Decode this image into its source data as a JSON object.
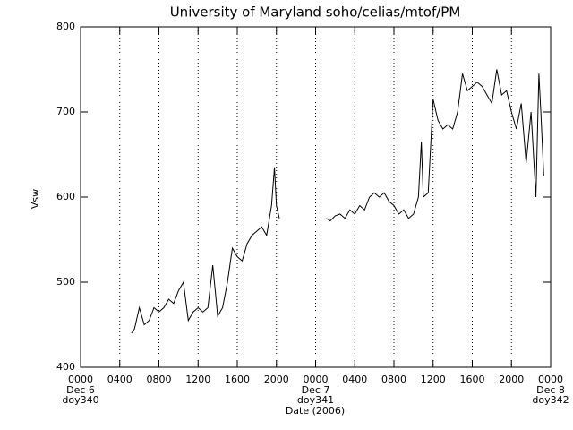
{
  "chart_data": {
    "type": "line",
    "title": "University of Maryland  soho/celias/mtof/PM",
    "ylabel": "Vsw",
    "xlabel": "Date (2006)",
    "color": "#000000",
    "x": [
      5.2,
      5.5,
      6.0,
      6.5,
      7.0,
      7.5,
      8.0,
      8.5,
      9.0,
      9.5,
      10.0,
      10.5,
      11.0,
      11.5,
      12.0,
      12.5,
      13.0,
      13.5,
      14.0,
      14.5,
      15.0,
      15.5,
      16.0,
      16.5,
      17.0,
      17.5,
      18.0,
      18.5,
      19.0,
      19.5,
      19.8,
      20.0,
      20.3,
      22.5,
      25.1,
      25.5,
      26.0,
      26.5,
      27.0,
      27.5,
      28.0,
      28.5,
      29.0,
      29.5,
      30.0,
      30.5,
      31.0,
      31.5,
      32.0,
      32.5,
      33.0,
      33.5,
      34.0,
      34.5,
      34.8,
      35.0,
      35.5,
      36.0,
      36.5,
      37.0,
      37.5,
      38.0,
      38.5,
      39.0,
      39.5,
      40.0,
      40.5,
      41.0,
      41.5,
      42.0,
      42.5,
      43.0,
      43.5,
      44.0,
      44.5,
      45.0,
      45.5,
      46.0,
      46.5,
      46.8,
      47.0,
      47.3
    ],
    "values": [
      440,
      445,
      470,
      450,
      455,
      470,
      465,
      470,
      480,
      475,
      490,
      500,
      455,
      465,
      470,
      465,
      470,
      520,
      460,
      470,
      500,
      540,
      530,
      525,
      545,
      555,
      560,
      565,
      555,
      590,
      635,
      590,
      575,
      null,
      575,
      572,
      578,
      580,
      575,
      585,
      580,
      590,
      585,
      600,
      605,
      600,
      605,
      595,
      590,
      580,
      585,
      575,
      580,
      600,
      665,
      600,
      605,
      715,
      690,
      680,
      685,
      680,
      700,
      745,
      725,
      730,
      735,
      730,
      720,
      710,
      750,
      720,
      725,
      700,
      680,
      710,
      640,
      700,
      600,
      745,
      700,
      625
    ],
    "xlim": [
      0,
      48
    ],
    "xticks": [
      {
        "value": 0,
        "label": "0000"
      },
      {
        "value": 4,
        "label": "0400"
      },
      {
        "value": 8,
        "label": "0800"
      },
      {
        "value": 12,
        "label": "1200"
      },
      {
        "value": 16,
        "label": "1600"
      },
      {
        "value": 20,
        "label": "2000"
      },
      {
        "value": 24,
        "label": "0000"
      },
      {
        "value": 28,
        "label": "0400"
      },
      {
        "value": 32,
        "label": "0800"
      },
      {
        "value": 36,
        "label": "1200"
      },
      {
        "value": 40,
        "label": "1600"
      },
      {
        "value": 44,
        "label": "2000"
      },
      {
        "value": 48,
        "label": "0000"
      }
    ],
    "day_labels": [
      {
        "value": 0,
        "date": "Dec 6",
        "doy": "doy340"
      },
      {
        "value": 24,
        "date": "Dec 7",
        "doy": "doy341"
      },
      {
        "value": 48,
        "date": "Dec 8",
        "doy": "doy342"
      }
    ],
    "ylim": [
      400,
      800
    ],
    "yticks": [
      400,
      500,
      600,
      700,
      800
    ],
    "grid": true
  }
}
